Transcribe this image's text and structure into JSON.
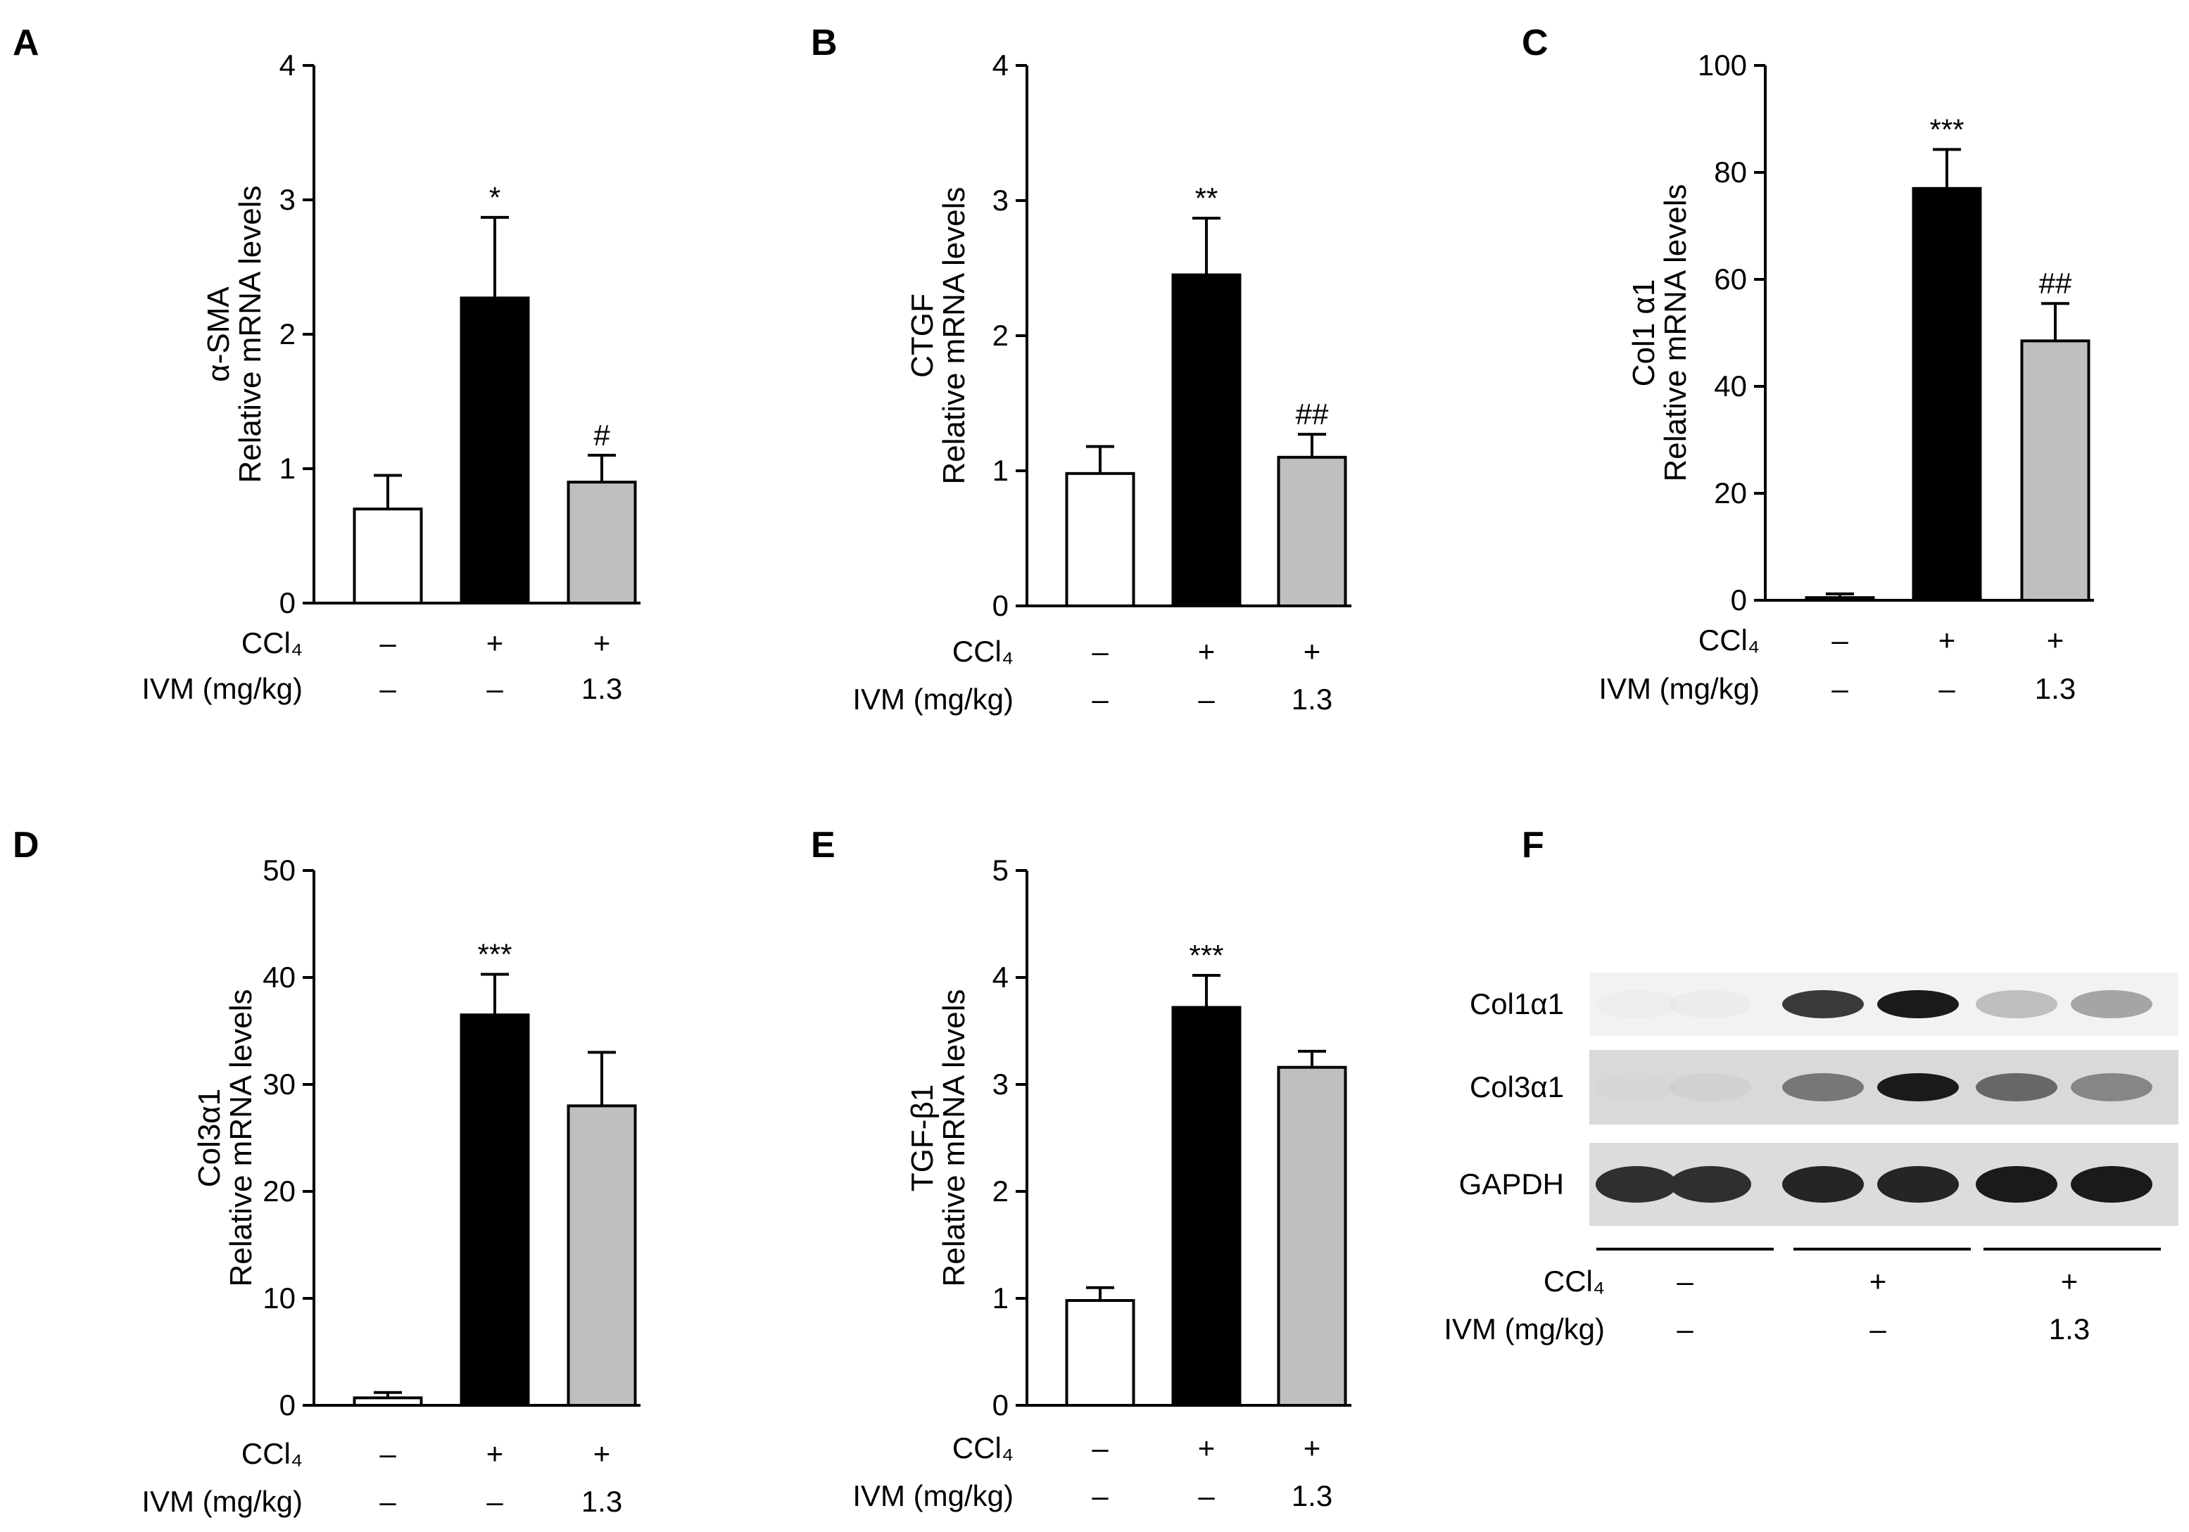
{
  "chart_data": [
    {
      "panel": "A",
      "type": "bar",
      "ylabel": [
        "α-SMA",
        "Relative mRNA levels"
      ],
      "ylim": [
        0,
        4
      ],
      "yticks": [
        0,
        1,
        2,
        3,
        4
      ],
      "values": [
        0.7,
        2.27,
        0.9
      ],
      "errors": [
        0.25,
        0.6,
        0.2
      ],
      "significance": [
        "",
        "*",
        "#"
      ],
      "fills": [
        "#ffffff",
        "#000000",
        "#bfbfbf"
      ],
      "conditions": [
        {
          "label": "CCl₄",
          "values": [
            "–",
            "+",
            "+"
          ]
        },
        {
          "label": "IVM (mg/kg)",
          "values": [
            "–",
            "–",
            "1.3"
          ]
        }
      ]
    },
    {
      "panel": "B",
      "type": "bar",
      "ylabel": [
        "CTGF",
        "Relative mRNA levels"
      ],
      "ylim": [
        0,
        4
      ],
      "yticks": [
        0,
        1,
        2,
        3,
        4
      ],
      "values": [
        0.98,
        2.45,
        1.1
      ],
      "errors": [
        0.2,
        0.42,
        0.17
      ],
      "significance": [
        "",
        "**",
        "##"
      ],
      "fills": [
        "#ffffff",
        "#000000",
        "#bfbfbf"
      ],
      "conditions": [
        {
          "label": "CCl₄",
          "values": [
            "–",
            "+",
            "+"
          ]
        },
        {
          "label": "IVM (mg/kg)",
          "values": [
            "–",
            "–",
            "1.3"
          ]
        }
      ]
    },
    {
      "panel": "C",
      "type": "bar",
      "ylabel": [
        "Col1 α1",
        "Relative mRNA levels"
      ],
      "ylim": [
        0,
        100
      ],
      "yticks": [
        0,
        20,
        40,
        60,
        80,
        100
      ],
      "values": [
        0.5,
        77,
        48.5
      ],
      "errors": [
        0.7,
        7.3,
        7
      ],
      "significance": [
        "",
        "***",
        "##"
      ],
      "fills": [
        "#ffffff",
        "#000000",
        "#bfbfbf"
      ],
      "conditions": [
        {
          "label": "CCl₄",
          "values": [
            "–",
            "+",
            "+"
          ]
        },
        {
          "label": "IVM (mg/kg)",
          "values": [
            "–",
            "–",
            "1.3"
          ]
        }
      ]
    },
    {
      "panel": "D",
      "type": "bar",
      "ylabel": [
        "Col3α1",
        "Relative mRNA levels"
      ],
      "ylim": [
        0,
        50
      ],
      "yticks": [
        0,
        10,
        20,
        30,
        40,
        50
      ],
      "values": [
        0.7,
        36.5,
        28
      ],
      "errors": [
        0.5,
        3.8,
        5
      ],
      "significance": [
        "",
        "***",
        ""
      ],
      "fills": [
        "#ffffff",
        "#000000",
        "#bfbfbf"
      ],
      "conditions": [
        {
          "label": "CCl₄",
          "values": [
            "–",
            "+",
            "+"
          ]
        },
        {
          "label": "IVM (mg/kg)",
          "values": [
            "–",
            "–",
            "1.3"
          ]
        }
      ]
    },
    {
      "panel": "E",
      "type": "bar",
      "ylabel": [
        "TGF-β1",
        "Relative mRNA levels"
      ],
      "ylim": [
        0,
        5
      ],
      "yticks": [
        0,
        1,
        2,
        3,
        4,
        5
      ],
      "values": [
        0.98,
        3.72,
        3.16
      ],
      "errors": [
        0.12,
        0.3,
        0.15
      ],
      "significance": [
        "",
        "***",
        ""
      ],
      "fills": [
        "#ffffff",
        "#000000",
        "#bfbfbf"
      ],
      "conditions": [
        {
          "label": "CCl₄",
          "values": [
            "–",
            "+",
            "+"
          ]
        },
        {
          "label": "IVM (mg/kg)",
          "values": [
            "–",
            "–",
            "1.3"
          ]
        }
      ]
    }
  ],
  "blot": {
    "panel": "F",
    "rows": [
      {
        "label": "Col1α1",
        "intensities": [
          0.02,
          0.04,
          0.8,
          0.95,
          0.35,
          0.45
        ]
      },
      {
        "label": "Col3α1",
        "intensities": [
          0.1,
          0.15,
          0.6,
          0.95,
          0.65,
          0.55
        ]
      },
      {
        "label": "GAPDH",
        "intensities": [
          0.85,
          0.85,
          0.9,
          0.9,
          0.95,
          0.95
        ]
      }
    ],
    "conditions": [
      {
        "label": "CCl₄",
        "values": [
          "–",
          "+",
          "+"
        ]
      },
      {
        "label": "IVM (mg/kg)",
        "values": [
          "–",
          "–",
          "1.3"
        ]
      }
    ]
  }
}
